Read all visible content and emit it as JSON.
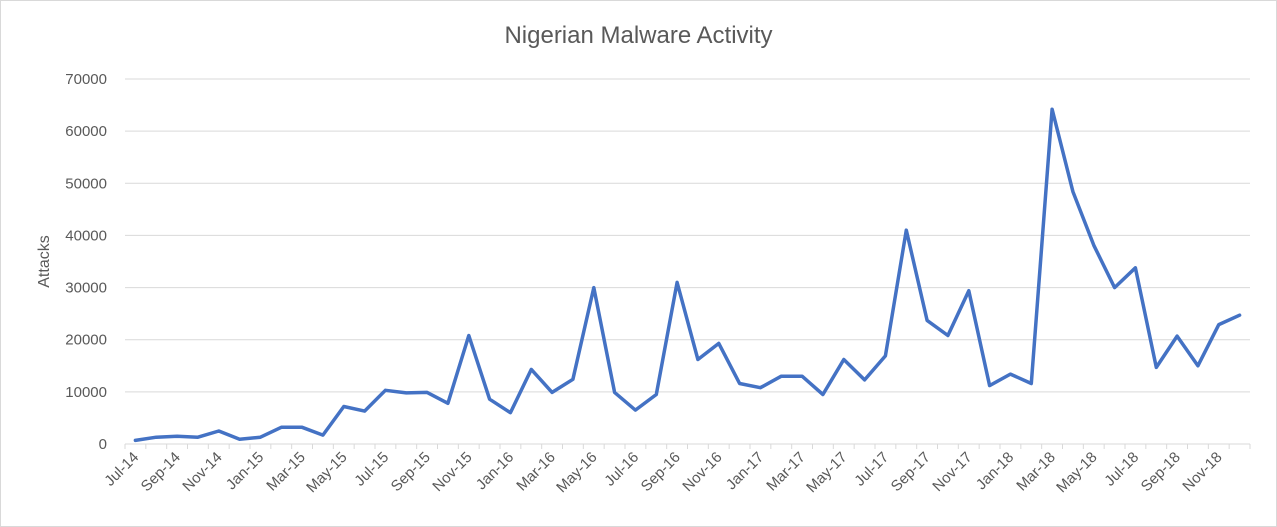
{
  "chart_data": {
    "type": "line",
    "title": "Nigerian Malware Activity",
    "xlabel": "",
    "ylabel": "Attacks",
    "ylim": [
      0,
      70000
    ],
    "y_ticks": [
      "0",
      "10000",
      "20000",
      "30000",
      "40000",
      "50000",
      "60000",
      "70000"
    ],
    "grid": true,
    "legend": "none",
    "line_color": "#4472c4",
    "x_tick_labels": [
      "Jul-14",
      "Sep-14",
      "Nov-14",
      "Jan-15",
      "Mar-15",
      "May-15",
      "Jul-15",
      "Sep-15",
      "Nov-15",
      "Jan-16",
      "Mar-16",
      "May-16",
      "Jul-16",
      "Sep-16",
      "Nov-16",
      "Jan-17",
      "Mar-17",
      "May-17",
      "Jul-17",
      "Sep-17",
      "Nov-17",
      "Jan-18",
      "Mar-18",
      "May-18",
      "Jul-18",
      "Sep-18",
      "Nov-18"
    ],
    "series": [
      {
        "x": [
          "Jul-14",
          "Aug-14",
          "Sep-14",
          "Oct-14",
          "Nov-14",
          "Dec-14",
          "Jan-15",
          "Feb-15",
          "Mar-15",
          "Apr-15",
          "May-15",
          "Jun-15",
          "Jul-15",
          "Aug-15",
          "Sep-15",
          "Oct-15",
          "Nov-15",
          "Dec-15",
          "Jan-16",
          "Feb-16",
          "Mar-16",
          "Apr-16",
          "May-16",
          "Jun-16",
          "Jul-16",
          "Aug-16",
          "Sep-16",
          "Oct-16",
          "Nov-16",
          "Dec-16",
          "Jan-17",
          "Feb-17",
          "Mar-17",
          "Apr-17",
          "May-17",
          "Jun-17",
          "Jul-17",
          "Aug-17",
          "Sep-17",
          "Oct-17",
          "Nov-17",
          "Dec-17",
          "Jan-18",
          "Feb-18",
          "Mar-18",
          "Apr-18",
          "May-18",
          "Jun-18",
          "Jul-18",
          "Aug-18",
          "Sep-18",
          "Oct-18",
          "Nov-18",
          "Dec-18"
        ],
        "values": [
          700,
          1300,
          1500,
          1300,
          2500,
          900,
          1300,
          3200,
          3200,
          1700,
          7200,
          6300,
          10300,
          9800,
          9900,
          7800,
          20800,
          8600,
          6000,
          14300,
          9900,
          12400,
          30000,
          9900,
          6500,
          9500,
          31000,
          16200,
          19300,
          11600,
          10800,
          13000,
          13000,
          9500,
          16200,
          12300,
          16900,
          41000,
          23700,
          20800,
          29400,
          11200,
          13400,
          11600,
          64200,
          48400,
          38100,
          30000,
          33800,
          14700,
          20700,
          15000,
          22900,
          24700
        ]
      }
    ]
  }
}
